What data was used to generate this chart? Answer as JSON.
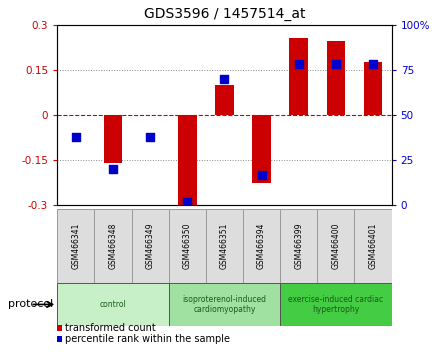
{
  "title": "GDS3596 / 1457514_at",
  "samples": [
    "GSM466341",
    "GSM466348",
    "GSM466349",
    "GSM466350",
    "GSM466351",
    "GSM466394",
    "GSM466399",
    "GSM466400",
    "GSM466401"
  ],
  "transformed_count": [
    0.0,
    -0.16,
    0.0,
    -0.305,
    0.1,
    -0.225,
    0.255,
    0.245,
    0.175
  ],
  "percentile_rank": [
    38,
    20,
    38,
    2,
    70,
    17,
    78,
    78,
    78
  ],
  "ylim_left": [
    -0.3,
    0.3
  ],
  "ylim_right": [
    0,
    100
  ],
  "yticks_left": [
    -0.3,
    -0.15,
    0,
    0.15,
    0.3
  ],
  "yticks_right": [
    0,
    25,
    50,
    75,
    100
  ],
  "groups": [
    {
      "label": "control",
      "start": 0,
      "end": 3,
      "color": "#c8f0c8"
    },
    {
      "label": "isoproterenol-induced\ncardiomyopathy",
      "start": 3,
      "end": 6,
      "color": "#a0e0a0"
    },
    {
      "label": "exercise-induced cardiac\nhypertrophy",
      "start": 6,
      "end": 9,
      "color": "#44cc44"
    }
  ],
  "bar_color": "#cc0000",
  "dot_color": "#0000cc",
  "bar_width": 0.5,
  "dot_size": 30,
  "zero_line_color": "#cc0000",
  "background_color": "#ffffff",
  "plot_bg": "#ffffff",
  "protocol_label": "protocol",
  "legend_items": [
    {
      "label": "transformed count",
      "color": "#cc0000"
    },
    {
      "label": "percentile rank within the sample",
      "color": "#0000cc"
    }
  ]
}
